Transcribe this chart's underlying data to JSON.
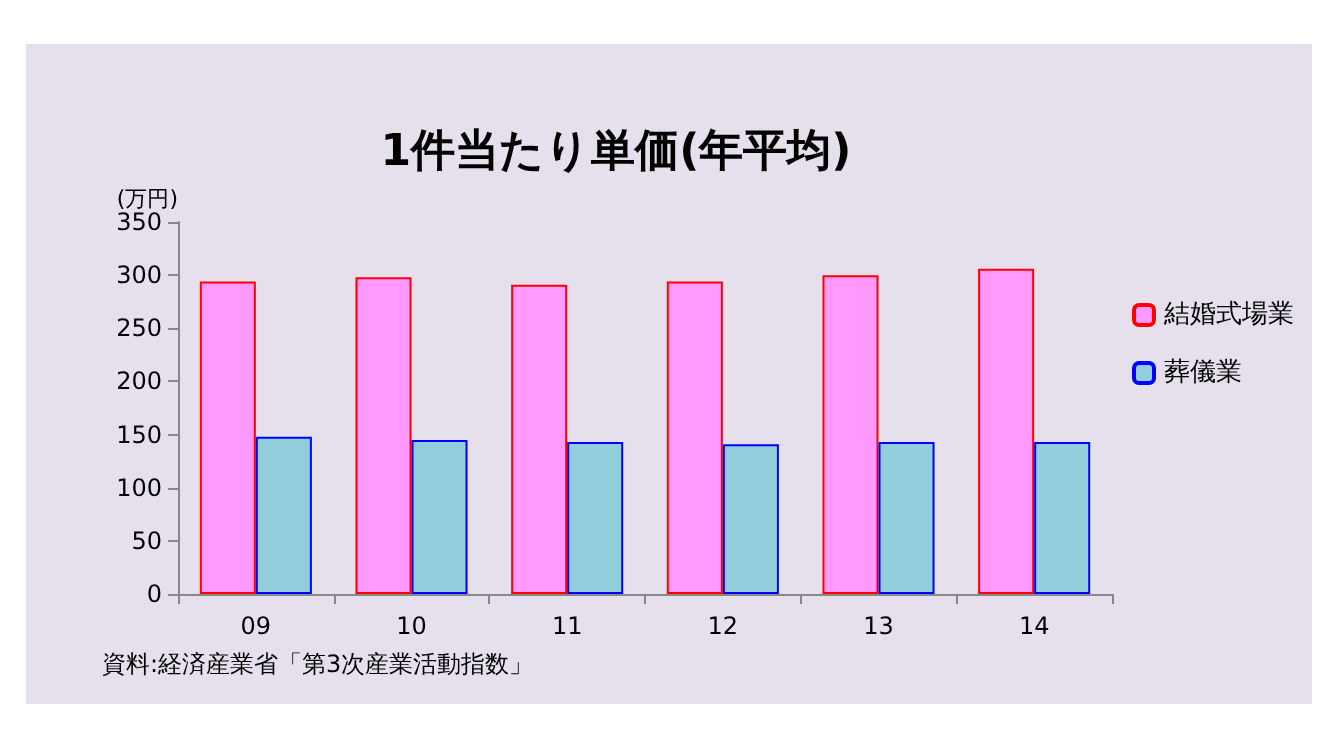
{
  "chart_data": {
    "type": "bar",
    "title": "1件当たり単価(年平均)",
    "ylabel": "(万円)",
    "categories": [
      "09",
      "10",
      "11",
      "12",
      "13",
      "14"
    ],
    "series": [
      {
        "name": "結婚式場業",
        "color": "#ff99ff",
        "values": [
          294,
          298,
          291,
          294,
          300,
          306
        ]
      },
      {
        "name": "葬儀業",
        "color": "#92cddc",
        "values": [
          148,
          145,
          143,
          141,
          143,
          143
        ]
      }
    ],
    "ylim": [
      0,
      350
    ],
    "yticks": [
      0,
      50,
      100,
      150,
      200,
      250,
      300,
      350
    ],
    "grid": false,
    "legend": "right",
    "annotations": [
      "資料:経済産業省「第3次産業活動指数」"
    ]
  }
}
